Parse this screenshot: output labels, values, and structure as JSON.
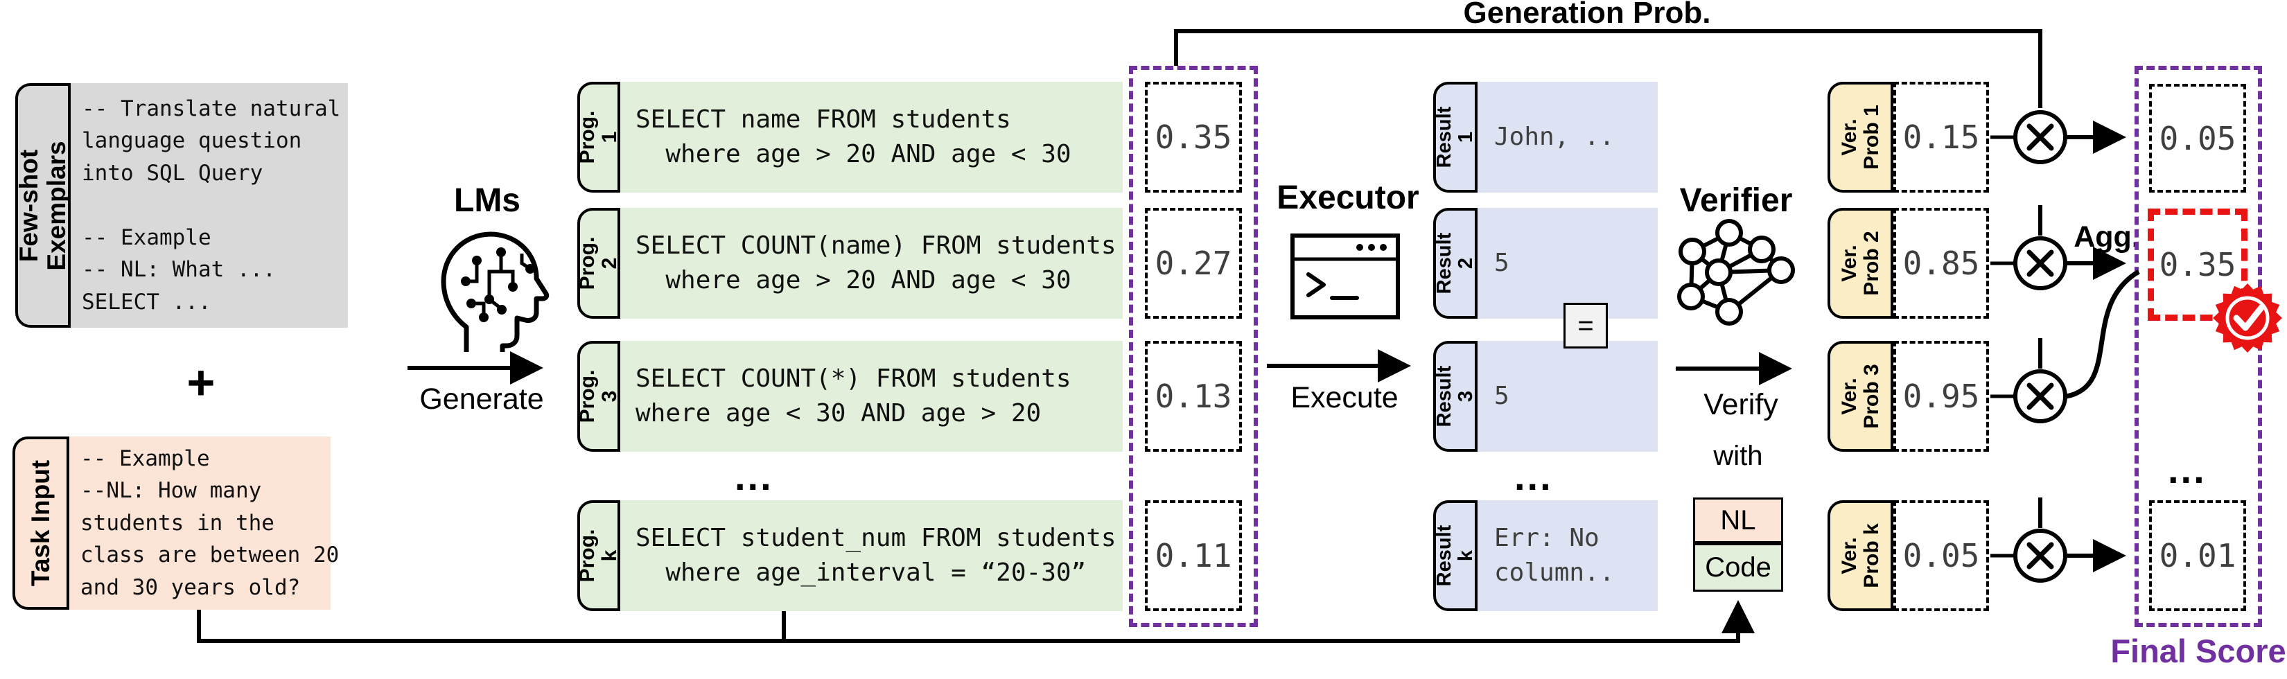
{
  "colors": {
    "purple": "#7030a0",
    "red": "#e81414",
    "gray": "#d9d9d9",
    "peach": "#fce4d6",
    "green": "#e2efda",
    "lavender": "#dde3f2",
    "yellow": "#fbeec6",
    "equals_bg": "#f2f2f2"
  },
  "top": {
    "generation_prob": "Generation Prob.",
    "final_score": "Final Score",
    "agg": "Agg."
  },
  "few_shot": {
    "tab": "Few-shot\nExemplars",
    "code": "-- Translate natural\nlanguage question\ninto SQL Query\n\n-- Example\n-- NL: What ...\nSELECT ..."
  },
  "plus": "+",
  "task_input": {
    "tab": "Task Input",
    "code": "-- Example\n--NL: How many\nstudents in the\nclass are between 20\nand 30 years old?"
  },
  "stages": {
    "lms": "LMs",
    "generate": "Generate",
    "executor": "Executor",
    "execute": "Execute",
    "verifier": "Verifier",
    "verify": "Verify",
    "with": "with",
    "nl": "NL",
    "code": "Code"
  },
  "equals": "=",
  "ellipsis": "...",
  "rows": [
    {
      "prog_tab": "Prog.\n1",
      "code": "SELECT name FROM students\n  where age > 20 AND age < 30",
      "gen_prob": "0.35",
      "result_tab": "Result\n1",
      "result": "John, ..",
      "ver_tab": "Ver.\nProb 1",
      "ver_prob": "0.15",
      "final": "0.05"
    },
    {
      "prog_tab": "Prog.\n2",
      "code": "SELECT COUNT(name) FROM students\n  where age > 20 AND age < 30",
      "gen_prob": "0.27",
      "result_tab": "Result\n2",
      "result": "5",
      "ver_tab": "Ver.\nProb 2",
      "ver_prob": "0.85",
      "final": "0.35"
    },
    {
      "prog_tab": "Prog.\n3",
      "code": "SELECT COUNT(*) FROM students\nwhere age < 30 AND age > 20",
      "gen_prob": "0.13",
      "result_tab": "Result\n3",
      "result": "5",
      "ver_tab": "Ver.\nProb 3",
      "ver_prob": "0.95"
    },
    {
      "prog_tab": "Prog.\nk",
      "code": "SELECT student_num FROM students\n  where age_interval = “20-30”",
      "gen_prob": "0.11",
      "result_tab": "Result\nk",
      "result": "Err: No\ncolumn..",
      "ver_tab": "Ver.\nProb k",
      "ver_prob": "0.05",
      "final": "0.01"
    }
  ]
}
